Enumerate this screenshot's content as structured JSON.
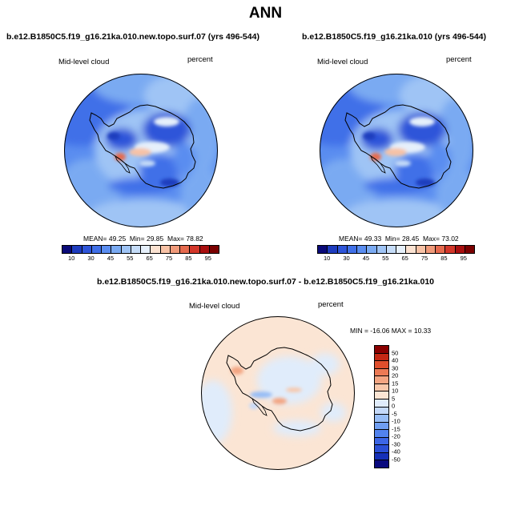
{
  "title": "ANN",
  "colors": {
    "abs_scale": [
      "#0a0a78",
      "#1e3cbe",
      "#2e55d9",
      "#4070e8",
      "#5a8df0",
      "#7aaaf2",
      "#9fc4f5",
      "#c5dcf8",
      "#e6f0fb",
      "#fbe2d1",
      "#f7c2a6",
      "#f09a7a",
      "#e56a4e",
      "#d3372a",
      "#a80f0f",
      "#7a0000"
    ],
    "diff_scale": [
      "#0a0a7e",
      "#1530b8",
      "#2a4fd6",
      "#3c66e6",
      "#5283ee",
      "#6f9ef2",
      "#97bdf6",
      "#c4d9f9",
      "#e0ecfb",
      "#fbe5d4",
      "#f8c8ab",
      "#f3a582",
      "#ec7a55",
      "#df4e2c",
      "#c42814",
      "#8a0000"
    ],
    "land_outline": "#000000"
  },
  "panels": [
    {
      "title": "b.e12.B1850C5.f19_g16.21ka.010.new.topo.surf.07 (yrs 496-544)",
      "variable": "Mid-level cloud",
      "units": "percent",
      "mean_label": "MEAN=",
      "mean": "49.25",
      "min_label": "Min=",
      "min": "29.85",
      "max_label": "Max=",
      "max": "78.82",
      "colorbar_labels": [
        "10",
        "30",
        "45",
        "55",
        "65",
        "75",
        "85",
        "95"
      ]
    },
    {
      "title": "b.e12.B1850C5.f19_g16.21ka.010 (yrs 496-544)",
      "variable": "Mid-level cloud",
      "units": "percent",
      "mean_label": "MEAN=",
      "mean": "49.33",
      "min_label": "Min=",
      "min": "28.45",
      "max_label": "Max=",
      "max": "73.02",
      "colorbar_labels": [
        "10",
        "30",
        "45",
        "55",
        "65",
        "75",
        "85",
        "95"
      ]
    }
  ],
  "diff_panel": {
    "title": "b.e12.B1850C5.f19_g16.21ka.010.new.topo.surf.07 - b.e12.B1850C5.f19_g16.21ka.010",
    "variable": "Mid-level cloud",
    "units": "percent",
    "minmax_text": "MIN = -16.06 MAX =  10.33",
    "colorbar_labels": [
      "50",
      "40",
      "30",
      "20",
      "15",
      "10",
      "5",
      "0",
      "-5",
      "-10",
      "-15",
      "-20",
      "-30",
      "-40",
      "-50"
    ]
  }
}
